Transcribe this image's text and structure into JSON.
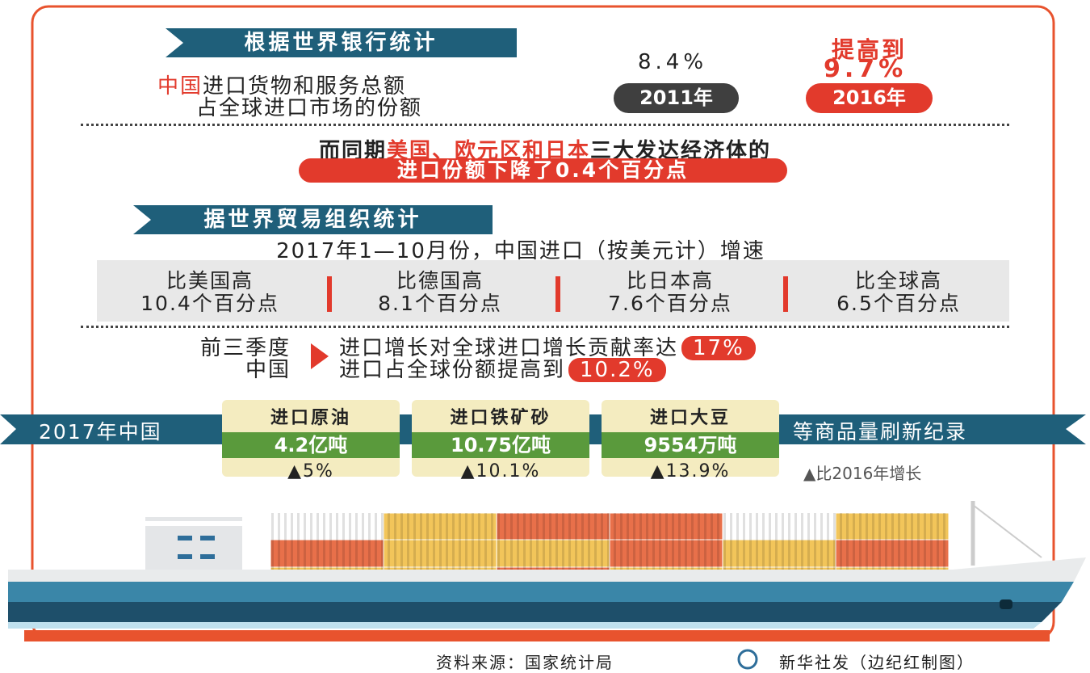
{
  "world_bank": {
    "banner": "根据世界银行统计",
    "desc": {
      "highlight": "中国",
      "line1": "进口货物和服务总额",
      "line2": "占全球进口市场的份额"
    },
    "before": {
      "value": "8.4%",
      "year": "2011年"
    },
    "after": {
      "label": "提高到",
      "value": "9.7%",
      "year": "2016年"
    }
  },
  "developed": {
    "prefix": "而同期",
    "highlight": "美国、欧元区和日本",
    "suffix": "三大发达经济体的",
    "pill": "进口份额下降了0.4个百分点"
  },
  "wto": {
    "banner": "据世界贸易组织统计",
    "subtitle": "2017年1—10月份，中国进口（按美元计）增速",
    "comparisons": [
      {
        "label": "比美国高",
        "value": "10.4个百分点"
      },
      {
        "label": "比德国高",
        "value": "8.1个百分点"
      },
      {
        "label": "比日本高",
        "value": "7.6个百分点"
      },
      {
        "label": "比全球高",
        "value": "6.5个百分点"
      }
    ],
    "period": "前三季度",
    "country": "中国",
    "facts": [
      {
        "text": "进口增长对全球进口增长贡献率达",
        "value": "17%"
      },
      {
        "text": "进口占全球份额提高到",
        "value": "10.2%"
      }
    ]
  },
  "records": {
    "lead": "2017年中国",
    "items": [
      {
        "name": "进口原油",
        "amount": "4.2亿吨",
        "growth": "5%"
      },
      {
        "name": "进口铁矿砂",
        "amount": "10.75亿吨",
        "growth": "10.1%"
      },
      {
        "name": "进口大豆",
        "amount": "9554万吨",
        "growth": "13.9%"
      }
    ],
    "tail": "等商品量刷新纪录",
    "legend": "比2016年增长"
  },
  "footer": {
    "source": "资料来源：国家统计局",
    "credit": "新华社发（边纪红制图）"
  }
}
